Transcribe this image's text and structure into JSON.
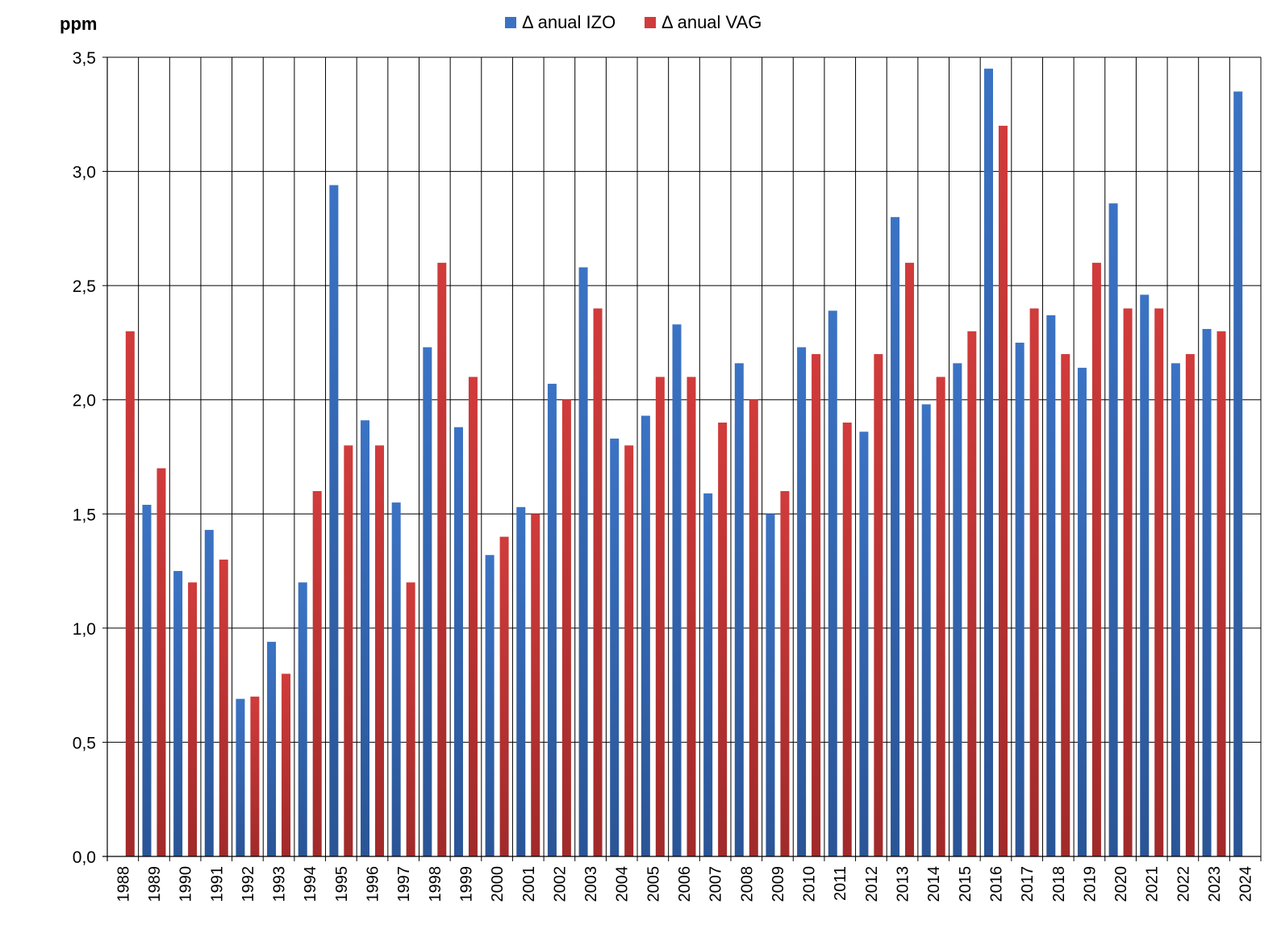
{
  "chart_data": {
    "type": "bar",
    "ylabel": "ppm",
    "ylim": [
      0,
      3.5
    ],
    "yticks": [
      "0,0",
      "0,5",
      "1,0",
      "1,5",
      "2,0",
      "2,5",
      "3,0",
      "3,5"
    ],
    "ytick_values": [
      0,
      0.5,
      1.0,
      1.5,
      2.0,
      2.5,
      3.0,
      3.5
    ],
    "grid": true,
    "legend_position": "top-center",
    "categories": [
      "1988",
      "1989",
      "1990",
      "1991",
      "1992",
      "1993",
      "1994",
      "1995",
      "1996",
      "1997",
      "1998",
      "1999",
      "2000",
      "2001",
      "2002",
      "2003",
      "2004",
      "2005",
      "2006",
      "2007",
      "2008",
      "2009",
      "2010",
      "2011",
      "2012",
      "2013",
      "2014",
      "2015",
      "2016",
      "2017",
      "2018",
      "2019",
      "2020",
      "2021",
      "2022",
      "2023",
      "2024"
    ],
    "series": [
      {
        "name": "Δ anual IZO",
        "color": "#3b73c4",
        "color_dark": "#2a5596",
        "values": [
          null,
          1.54,
          1.25,
          1.43,
          0.69,
          0.94,
          1.2,
          2.94,
          1.91,
          1.55,
          2.23,
          1.88,
          1.32,
          1.53,
          2.07,
          2.58,
          1.83,
          1.93,
          2.33,
          1.59,
          2.16,
          1.5,
          2.23,
          2.39,
          1.86,
          2.8,
          1.98,
          2.16,
          3.45,
          2.25,
          2.37,
          2.14,
          2.86,
          2.46,
          2.16,
          2.31,
          3.35
        ]
      },
      {
        "name": "Δ anual VAG",
        "color": "#d13b3b",
        "color_dark": "#a12a2a",
        "values": [
          2.3,
          1.7,
          1.2,
          1.3,
          0.7,
          0.8,
          1.6,
          1.8,
          1.8,
          1.2,
          2.6,
          2.1,
          1.4,
          1.5,
          2.0,
          2.4,
          1.8,
          2.1,
          2.1,
          1.9,
          2.0,
          1.6,
          2.2,
          1.9,
          2.2,
          2.6,
          2.1,
          2.3,
          3.2,
          2.4,
          2.2,
          2.6,
          2.4,
          2.4,
          2.2,
          2.3,
          null
        ]
      }
    ]
  }
}
